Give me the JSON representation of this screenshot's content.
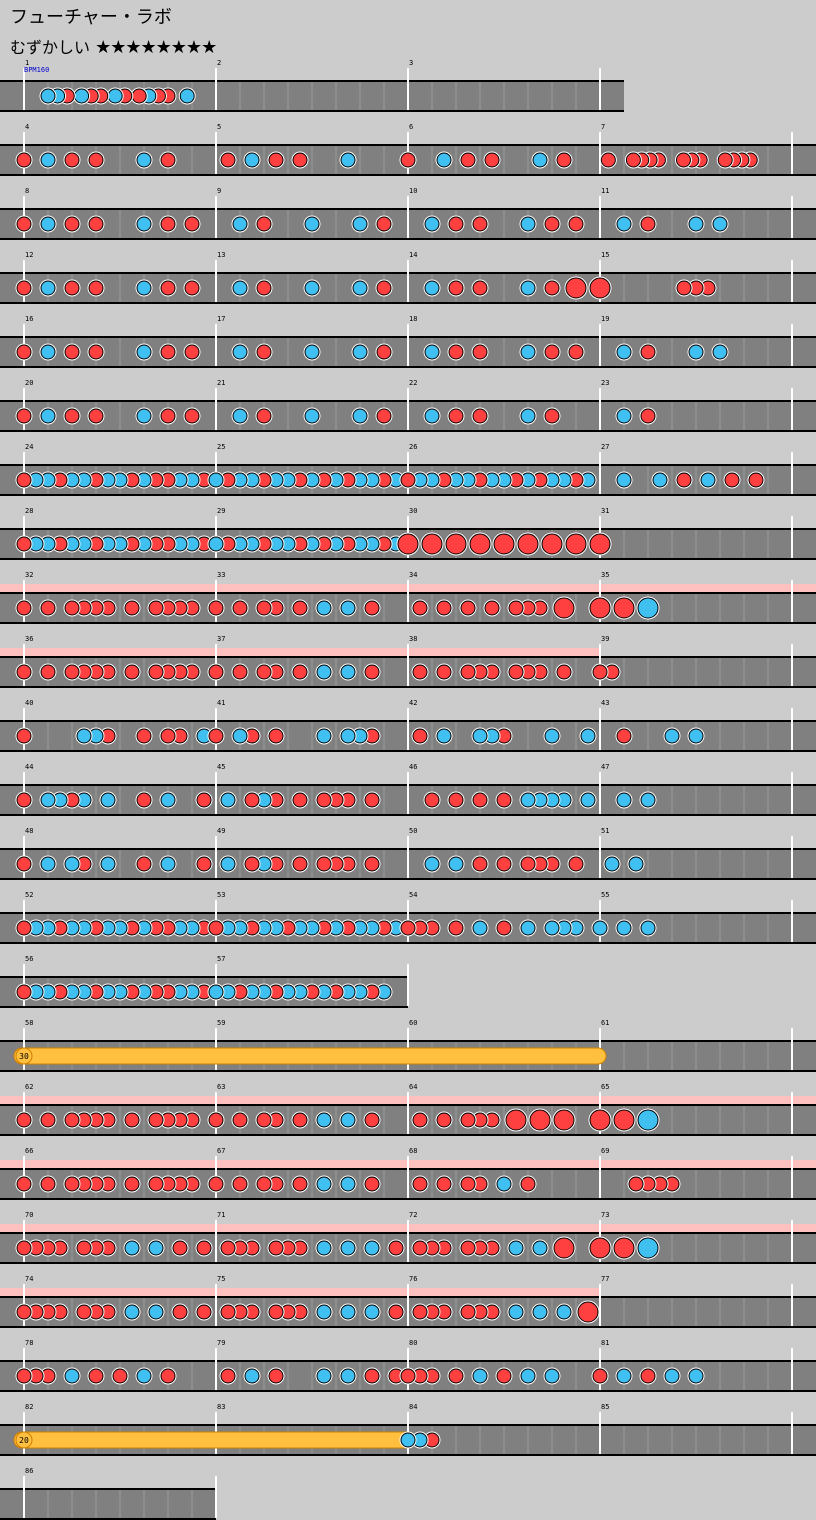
{
  "header": {
    "title": "フューチャー・ラボ",
    "difficulty_label": "むずかしい",
    "stars": "★★★★★★★★"
  },
  "bpm_label": "BPM160",
  "colors": {
    "background": "#cccccc",
    "lane": "#808080",
    "lane_line": "#000000",
    "divider": "#ffffff",
    "gogo": "#ffc0c0",
    "don": "#ff4040",
    "ka": "#40c0f0",
    "drumroll": "#ffc040"
  },
  "legend": {
    "d": "don (red, small)",
    "k": "ka (blue, small)",
    "D": "big don (red)",
    "K": "big ka (blue)",
    "R": "drumroll start"
  },
  "rows": [
    {
      "measures": [
        1,
        2,
        3
      ],
      "partial": 3,
      "gogo": [],
      "notes": [
        "00000k0k0d00k0d0d00k0d00d0k0d0d000k00000",
        "",
        "00"
      ]
    },
    {
      "measures": [
        4,
        5,
        6,
        7
      ],
      "gogo": [],
      "notes": [
        "d0k0d0d000k0d000",
        "0d0k0d0d000k0000",
        "d00k0d0d000k0d00",
        "0d00dddd00ddd00dddd0000"
      ]
    },
    {
      "measures": [
        8,
        9,
        10,
        11
      ],
      "gogo": [],
      "notes": [
        "d0k0d0d000k0d0d0",
        "00k0d000k000k0d0",
        "00k0d0d000k0d0d0",
        "00k0d000k0k00000"
      ]
    },
    {
      "measures": [
        12,
        13,
        14,
        15
      ],
      "gogo": [],
      "notes": [
        "d0k0d0d000k0d0d0",
        "00k0d000k000k0d0",
        "00k0d0d000k0d0D0",
        "D000000ddd000000"
      ]
    },
    {
      "measures": [
        16,
        17,
        18,
        19
      ],
      "gogo": [],
      "notes": [
        "d0k0d0d000k0d0d0",
        "00k0d000k000k0d0",
        "00k0d0d000k0d0d0",
        "00k0d000k0k00000"
      ]
    },
    {
      "measures": [
        20,
        21,
        22,
        23
      ],
      "gogo": [],
      "notes": [
        "d0k0d0d000k0d0d0",
        "00k0d000k000k0d0",
        "00k0d0d000k0d000",
        "00k0d00000000000"
      ]
    },
    {
      "measures": [
        24,
        25,
        26,
        27
      ],
      "gogo": [],
      "notes": [
        "dkkdkkdkkdkddkkd",
        "kdkkdkkdkdkdkkdk",
        "dkkdkkdkkdkdkkdk",
        "00k00k0d0k0d0d00"
      ]
    },
    {
      "measures": [
        28,
        29,
        30,
        31
      ],
      "gogo": [],
      "notes": [
        "dkkdkkdkkdkddkkd",
        "kdkkdkkdkdkdkkdk",
        "D0D0D0D0D0D0D0D0",
        "D000000000000000"
      ]
    },
    {
      "measures": [
        32,
        33,
        34,
        35
      ],
      "gogo": [
        0,
        1,
        2,
        3
      ],
      "notes": [
        "d0d0dddd0d0dddd0",
        "d0d0dd0d0k0k0d00",
        "0d0d0d0d0ddd0D00",
        "D0D0K00000000000"
      ]
    },
    {
      "measures": [
        36,
        37,
        38,
        39
      ],
      "gogo": [
        0,
        1,
        2
      ],
      "notes": [
        "d0d0dddd0d0dddd0",
        "d0d0dd0d0k0k0d00",
        "0d0d0ddd0ddd0d00",
        "dd00000000000000"
      ]
    },
    {
      "measures": [
        40,
        41,
        42,
        43
      ],
      "gogo": [],
      "notes": [
        "d0000kkd00d0dd0k",
        "d0kd0d000k0kkd00",
        "0d0k00kkd000k00k",
        "00d000k0k0000000"
      ]
    },
    {
      "measures": [
        44,
        45,
        46,
        47
      ],
      "gogo": [],
      "notes": [
        "d0kkdk0k00d0k00d",
        "0k0dkd0d0ddd0d00",
        "00d0d0d0d0kkkk0k",
        "00k0k00000000000"
      ]
    },
    {
      "measures": [
        48,
        49,
        50,
        51
      ],
      "gogo": [],
      "notes": [
        "d0k0kd0k00d0k00d",
        "0k0dkd0d0ddd0d00",
        "00k0k0d0d0ddd0d0",
        "0k0k000000000000"
      ]
    },
    {
      "measures": [
        52,
        53,
        54,
        55
      ],
      "gogo": [],
      "notes": [
        "dkkdkkdkkdkddkkd",
        "dkkdkkdkkdkdkkdk",
        "ddd0d0k0d0k0kkk0",
        "k0k0k00000000000"
      ]
    },
    {
      "measures": [
        56,
        57
      ],
      "partial": 2,
      "gogo": [],
      "notes": [
        "dkkdkkdkkdkddkkd",
        "kkdkkdkkdkdkkdk0"
      ]
    },
    {
      "measures": [
        58,
        59,
        60,
        61
      ],
      "gogo": [],
      "roll": {
        "start": 0,
        "end_measure": 2,
        "label": "30"
      },
      "notes": [
        "",
        "",
        "",
        ""
      ]
    },
    {
      "measures": [
        62,
        63,
        64,
        65
      ],
      "gogo": [
        0,
        1,
        2,
        3
      ],
      "notes": [
        "d0d0dddd0d0dddd0",
        "d0d0dd0d0k0k0d00",
        "0d0d0ddd0D0D0D00",
        "D0D0K00000000000"
      ]
    },
    {
      "measures": [
        66,
        67,
        68,
        69
      ],
      "gogo": [
        0,
        1,
        2,
        3
      ],
      "notes": [
        "d0d0dddd0d0dddd0",
        "d0d0dd0d0k0k0d00",
        "0d0d0dd0k0d00000",
        "000dddd000000000"
      ]
    },
    {
      "measures": [
        70,
        71,
        72,
        73
      ],
      "gogo": [
        0,
        1,
        2,
        3
      ],
      "notes": [
        "dddd0ddd0k0k0d0d",
        "0ddd0ddd0k0k0k0d",
        "0ddd0ddd0k0k0D00",
        "D0D0K00000000000"
      ]
    },
    {
      "measures": [
        74,
        75,
        76,
        77
      ],
      "gogo": [
        0,
        1,
        2
      ],
      "notes": [
        "dddd0ddd0k0k0d0d",
        "0ddd0ddd0k0k0k0d",
        "0ddd0ddd0k0k0k0D",
        "0000000000000000"
      ]
    },
    {
      "measures": [
        78,
        79,
        80,
        81
      ],
      "gogo": [],
      "notes": [
        "ddd0k0d0d0k0d000",
        "0d0k0d000k0k0d0d",
        "ddd0d0k0d0k0k000",
        "d0k0d0k0k0000000"
      ]
    },
    {
      "measures": [
        82,
        83,
        84,
        85
      ],
      "gogo": [],
      "roll": {
        "start": 0,
        "end_measure": 1,
        "label": "20"
      },
      "notes": [
        "",
        "",
        "kkd0000000000000",
        ""
      ]
    },
    {
      "measures": [
        86
      ],
      "partial": 1,
      "gogo": [],
      "notes": [
        ""
      ]
    }
  ]
}
